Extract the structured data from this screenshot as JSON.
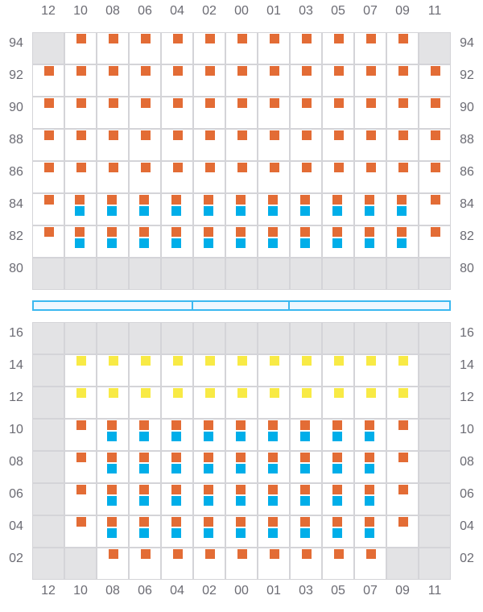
{
  "columns": [
    "12",
    "10",
    "08",
    "06",
    "04",
    "02",
    "00",
    "01",
    "03",
    "05",
    "07",
    "09",
    "11"
  ],
  "colors": {
    "orange": "#e36c35",
    "blue": "#00aee9",
    "yellow": "#f8ea45",
    "disabled": "#e3e3e5",
    "border": "#d4d4d8",
    "separator": "#3bb8f0"
  },
  "legend_codes": {
    "g": "disabled",
    "e": "empty",
    "o": "orange",
    "ob": "orange+blue",
    "y": "yellow"
  },
  "top_section": {
    "rows": [
      {
        "label": "94",
        "cells": [
          "g",
          "o",
          "o",
          "o",
          "o",
          "o",
          "o",
          "o",
          "o",
          "o",
          "o",
          "o",
          "g"
        ]
      },
      {
        "label": "92",
        "cells": [
          "o",
          "o",
          "o",
          "o",
          "o",
          "o",
          "o",
          "o",
          "o",
          "o",
          "o",
          "o",
          "o"
        ]
      },
      {
        "label": "90",
        "cells": [
          "o",
          "o",
          "o",
          "o",
          "o",
          "o",
          "o",
          "o",
          "o",
          "o",
          "o",
          "o",
          "o"
        ]
      },
      {
        "label": "88",
        "cells": [
          "o",
          "o",
          "o",
          "o",
          "o",
          "o",
          "o",
          "o",
          "o",
          "o",
          "o",
          "o",
          "o"
        ]
      },
      {
        "label": "86",
        "cells": [
          "o",
          "o",
          "o",
          "o",
          "o",
          "o",
          "o",
          "o",
          "o",
          "o",
          "o",
          "o",
          "o"
        ]
      },
      {
        "label": "84",
        "cells": [
          "o",
          "ob",
          "ob",
          "ob",
          "ob",
          "ob",
          "ob",
          "ob",
          "ob",
          "ob",
          "ob",
          "ob",
          "o"
        ]
      },
      {
        "label": "82",
        "cells": [
          "o",
          "ob",
          "ob",
          "ob",
          "ob",
          "ob",
          "ob",
          "ob",
          "ob",
          "ob",
          "ob",
          "ob",
          "o"
        ]
      },
      {
        "label": "80",
        "cells": [
          "g",
          "g",
          "g",
          "g",
          "g",
          "g",
          "g",
          "g",
          "g",
          "g",
          "g",
          "g",
          "g"
        ]
      }
    ]
  },
  "separator_segments": 3,
  "bottom_section": {
    "rows": [
      {
        "label": "16",
        "cells": [
          "g",
          "g",
          "g",
          "g",
          "g",
          "g",
          "g",
          "g",
          "g",
          "g",
          "g",
          "g",
          "g"
        ]
      },
      {
        "label": "14",
        "cells": [
          "g",
          "y",
          "y",
          "y",
          "y",
          "y",
          "y",
          "y",
          "y",
          "y",
          "y",
          "y",
          "g"
        ]
      },
      {
        "label": "12",
        "cells": [
          "g",
          "y",
          "y",
          "y",
          "y",
          "y",
          "y",
          "y",
          "y",
          "y",
          "y",
          "y",
          "g"
        ]
      },
      {
        "label": "10",
        "cells": [
          "g",
          "o",
          "ob",
          "ob",
          "ob",
          "ob",
          "ob",
          "ob",
          "ob",
          "ob",
          "ob",
          "o",
          "g"
        ]
      },
      {
        "label": "08",
        "cells": [
          "g",
          "o",
          "ob",
          "ob",
          "ob",
          "ob",
          "ob",
          "ob",
          "ob",
          "ob",
          "ob",
          "o",
          "g"
        ]
      },
      {
        "label": "06",
        "cells": [
          "g",
          "o",
          "ob",
          "ob",
          "ob",
          "ob",
          "ob",
          "ob",
          "ob",
          "ob",
          "ob",
          "o",
          "g"
        ]
      },
      {
        "label": "04",
        "cells": [
          "g",
          "o",
          "ob",
          "ob",
          "ob",
          "ob",
          "ob",
          "ob",
          "ob",
          "ob",
          "ob",
          "o",
          "g"
        ]
      },
      {
        "label": "02",
        "cells": [
          "g",
          "g",
          "o",
          "o",
          "o",
          "o",
          "o",
          "o",
          "o",
          "o",
          "o",
          "g",
          "g"
        ]
      }
    ]
  }
}
